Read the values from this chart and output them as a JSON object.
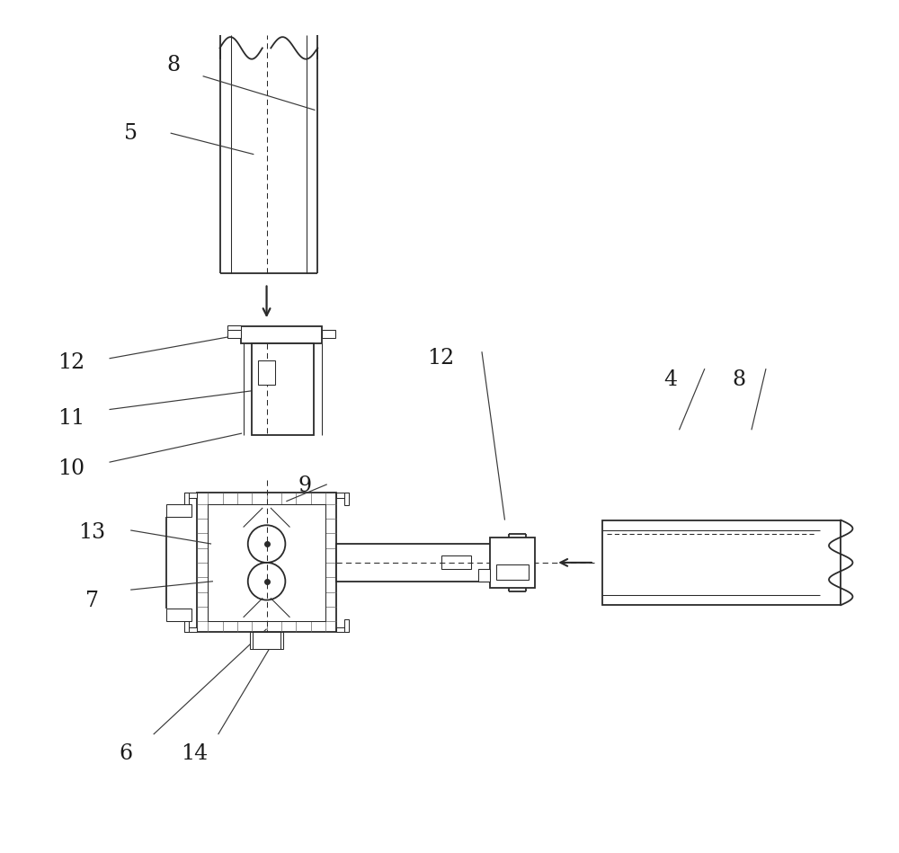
{
  "bg_color": "#ffffff",
  "line_color": "#2a2a2a",
  "lw": 1.3,
  "thin_lw": 0.75,
  "labels": {
    "8_top": [
      0.175,
      0.925,
      "8"
    ],
    "5_top": [
      0.125,
      0.845,
      "5"
    ],
    "12_left": [
      0.055,
      0.575,
      "12"
    ],
    "11_left": [
      0.055,
      0.51,
      "11"
    ],
    "10_left": [
      0.055,
      0.45,
      "10"
    ],
    "9_mid": [
      0.33,
      0.43,
      "9"
    ],
    "13_left": [
      0.08,
      0.375,
      "13"
    ],
    "7_left": [
      0.08,
      0.295,
      "7"
    ],
    "6_bot": [
      0.12,
      0.115,
      "6"
    ],
    "14_bot": [
      0.2,
      0.115,
      "14"
    ],
    "12_right": [
      0.49,
      0.58,
      "12"
    ],
    "4_right": [
      0.76,
      0.555,
      "4"
    ],
    "8_right": [
      0.84,
      0.555,
      "8"
    ]
  }
}
